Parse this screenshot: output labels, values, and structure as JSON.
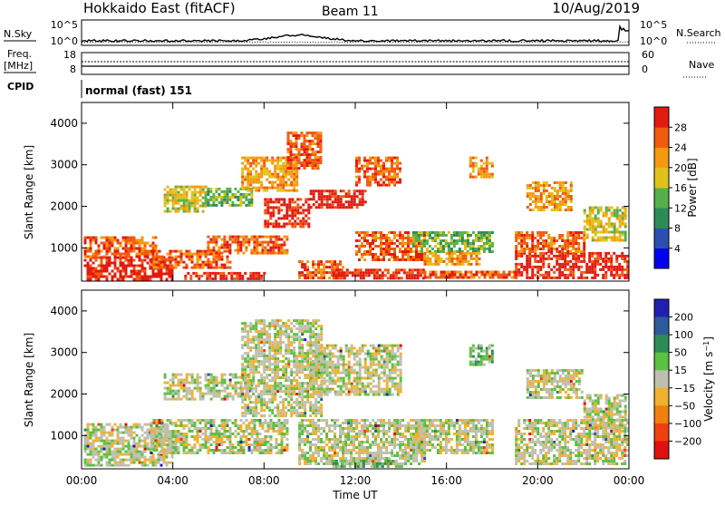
{
  "header": {
    "title": "Hokkaido East (fitACF)",
    "beam": "Beam 11",
    "date": "10/Aug/2019"
  },
  "summary_panels": {
    "nsky": {
      "label": "N.Sky",
      "ticks": [
        "10^5",
        "10^0"
      ]
    },
    "nsearch": {
      "label": "N.Search",
      "ticks": [
        "10^5",
        "10^0"
      ]
    },
    "freq": {
      "label_line1": "Freq.",
      "label_line2": "[MHz]",
      "ticks": [
        "18",
        "8"
      ]
    },
    "nave": {
      "label": "Nave",
      "ticks": [
        "60",
        "0"
      ]
    },
    "cpid": {
      "label": "CPID",
      "value": "normal (fast) 151"
    }
  },
  "chart_data": [
    {
      "type": "heatmap",
      "name": "power",
      "ylabel": "Slant Range [km]",
      "xlabel": "",
      "x_ticks": [
        "00:00",
        "04:00",
        "08:00",
        "12:00",
        "16:00",
        "20:00",
        "00:00"
      ],
      "y_ticks": [
        1000,
        2000,
        3000,
        4000
      ],
      "xlim_hours": [
        0,
        24
      ],
      "ylim_km": [
        200,
        4500
      ],
      "colorbar": {
        "label": "Power [dB]",
        "ticks": [
          "4",
          "8",
          "12",
          "16",
          "20",
          "24",
          "28"
        ],
        "range": [
          0,
          30
        ],
        "colors": [
          "#0000ee",
          "#2a4fb0",
          "#2e8b57",
          "#56b04a",
          "#e0c21a",
          "#f39a10",
          "#f25a10",
          "#e21a10"
        ]
      },
      "regions": [
        {
          "t0": 0.1,
          "t1": 4.0,
          "r0": 260,
          "r1": 800,
          "level": 7
        },
        {
          "t0": 0.1,
          "t1": 3.2,
          "r0": 800,
          "r1": 1280,
          "level": 6
        },
        {
          "t0": 3.0,
          "t1": 6.5,
          "r0": 550,
          "r1": 950,
          "level": 6
        },
        {
          "t0": 5.5,
          "t1": 9.0,
          "r0": 900,
          "r1": 1300,
          "level": 6
        },
        {
          "t0": 4.5,
          "t1": 8.0,
          "r0": 260,
          "r1": 420,
          "level": 7
        },
        {
          "t0": 3.6,
          "t1": 5.4,
          "r0": 1900,
          "r1": 2500,
          "level": 4
        },
        {
          "t0": 5.5,
          "t1": 7.5,
          "r0": 2000,
          "r1": 2450,
          "level": 3
        },
        {
          "t0": 7.0,
          "t1": 9.5,
          "r0": 2400,
          "r1": 3200,
          "level": 5
        },
        {
          "t0": 8.0,
          "t1": 10.0,
          "r0": 1500,
          "r1": 2200,
          "level": 7
        },
        {
          "t0": 9.0,
          "t1": 10.5,
          "r0": 2900,
          "r1": 3800,
          "level": 6
        },
        {
          "t0": 10.0,
          "t1": 12.5,
          "r0": 2000,
          "r1": 2400,
          "level": 7
        },
        {
          "t0": 12.0,
          "t1": 14.0,
          "r0": 2500,
          "r1": 3200,
          "level": 6
        },
        {
          "t0": 9.5,
          "t1": 11.5,
          "r0": 300,
          "r1": 700,
          "level": 6
        },
        {
          "t0": 11.0,
          "t1": 15.0,
          "r0": 260,
          "r1": 500,
          "level": 7
        },
        {
          "t0": 12.0,
          "t1": 15.0,
          "r0": 700,
          "r1": 1400,
          "level": 6
        },
        {
          "t0": 14.5,
          "t1": 18.0,
          "r0": 900,
          "r1": 1400,
          "level": 3
        },
        {
          "t0": 15.0,
          "t1": 17.5,
          "r0": 600,
          "r1": 900,
          "level": 5
        },
        {
          "t0": 15.0,
          "t1": 19.0,
          "r0": 260,
          "r1": 450,
          "level": 6
        },
        {
          "t0": 17.0,
          "t1": 18.0,
          "r0": 2700,
          "r1": 3200,
          "level": 5
        },
        {
          "t0": 19.0,
          "t1": 23.9,
          "r0": 300,
          "r1": 900,
          "level": 7
        },
        {
          "t0": 19.0,
          "t1": 22.0,
          "r0": 900,
          "r1": 1400,
          "level": 6
        },
        {
          "t0": 19.5,
          "t1": 21.5,
          "r0": 1900,
          "r1": 2600,
          "level": 5
        },
        {
          "t0": 22.0,
          "t1": 23.9,
          "r0": 1200,
          "r1": 2000,
          "level": 4
        }
      ]
    },
    {
      "type": "heatmap",
      "name": "velocity",
      "ylabel": "Slant Range [km]",
      "xlabel": "Time UT",
      "x_ticks": [
        "00:00",
        "04:00",
        "08:00",
        "12:00",
        "16:00",
        "20:00",
        "00:00"
      ],
      "y_ticks": [
        1000,
        2000,
        3000,
        4000
      ],
      "xlim_hours": [
        0,
        24
      ],
      "ylim_km": [
        200,
        4500
      ],
      "colorbar": {
        "label": "Velocity [m s^-1]",
        "ticks": [
          "200",
          "100",
          "50",
          "15",
          "−15",
          "−50",
          "−100",
          "−200"
        ],
        "colors": [
          "#2020b0",
          "#2c5a9a",
          "#2e8b57",
          "#5cc040",
          "#bfbfb0",
          "#f0b030",
          "#f08010",
          "#f04010",
          "#e01010"
        ]
      },
      "regions": [
        {
          "t0": 0.1,
          "t1": 4.0,
          "r0": 260,
          "r1": 1300,
          "level": 4
        },
        {
          "t0": 3.0,
          "t1": 9.0,
          "r0": 600,
          "r1": 1400,
          "level": 4
        },
        {
          "t0": 3.6,
          "t1": 7.5,
          "r0": 1900,
          "r1": 2500,
          "level": 4
        },
        {
          "t0": 7.0,
          "t1": 10.5,
          "r0": 1500,
          "r1": 3800,
          "level": 4
        },
        {
          "t0": 10.0,
          "t1": 14.0,
          "r0": 2000,
          "r1": 3200,
          "level": 4
        },
        {
          "t0": 9.5,
          "t1": 15.0,
          "r0": 300,
          "r1": 1400,
          "level": 4
        },
        {
          "t0": 11.0,
          "t1": 14.0,
          "r0": 260,
          "r1": 420,
          "level": 3
        },
        {
          "t0": 14.5,
          "t1": 18.0,
          "r0": 600,
          "r1": 1400,
          "level": 4
        },
        {
          "t0": 17.0,
          "t1": 18.0,
          "r0": 2700,
          "r1": 3200,
          "level": 3
        },
        {
          "t0": 19.0,
          "t1": 23.9,
          "r0": 300,
          "r1": 1400,
          "level": 4
        },
        {
          "t0": 19.5,
          "t1": 22.0,
          "r0": 1900,
          "r1": 2600,
          "level": 4
        },
        {
          "t0": 22.0,
          "t1": 23.9,
          "r0": 1200,
          "r1": 2000,
          "level": 4
        }
      ]
    }
  ]
}
